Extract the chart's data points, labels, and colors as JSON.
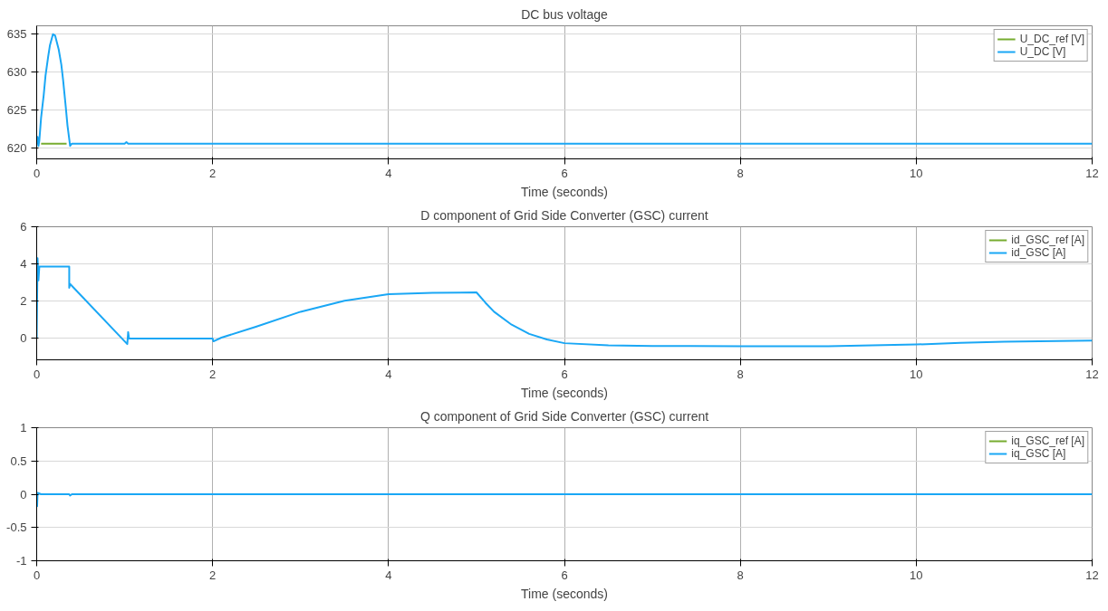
{
  "chart_data": [
    {
      "type": "line",
      "title": "DC bus voltage",
      "xlabel": "Time (seconds)",
      "xlim": [
        0,
        12
      ],
      "xticks": [
        0,
        2,
        4,
        6,
        8,
        10,
        12
      ],
      "ylim": [
        618.6,
        636.1
      ],
      "yticks": [
        620,
        625,
        630,
        635
      ],
      "grid": true,
      "legend": "top right",
      "series": [
        {
          "name": "U_DC_ref [V]",
          "color": "#77ac30",
          "x": [
            0.05,
            0.34
          ],
          "values": [
            620.6,
            620.6
          ]
        },
        {
          "name": "U_DC [V]",
          "color": "#1aa7f5",
          "x": [
            0,
            0.01,
            0.02,
            0.03,
            0.05,
            0.08,
            0.1,
            0.13,
            0.15,
            0.185,
            0.21,
            0.25,
            0.28,
            0.3,
            0.33,
            0.35,
            0.38,
            0.4,
            1.0,
            1.02,
            1.04,
            12
          ],
          "values": [
            620.5,
            621.5,
            620.3,
            621,
            624,
            627,
            629.5,
            632,
            633.5,
            635,
            634.8,
            633,
            631,
            629,
            625.5,
            623,
            620.3,
            620.6,
            620.6,
            620.8,
            620.6,
            620.6
          ]
        }
      ]
    },
    {
      "type": "line",
      "title": "D component of Grid Side Converter (GSC) current",
      "xlabel": "Time (seconds)",
      "xlim": [
        0,
        12
      ],
      "xticks": [
        0,
        2,
        4,
        6,
        8,
        10,
        12
      ],
      "ylim": [
        -1.2,
        6
      ],
      "yticks": [
        0,
        2,
        4,
        6
      ],
      "grid": true,
      "legend": "top right",
      "series": [
        {
          "name": "id_GSC_ref [A]",
          "color": "#77ac30"
        },
        {
          "name": "id_GSC [A]",
          "color": "#1aa7f5",
          "x": [
            0,
            0.01,
            0.02,
            0.03,
            0.37,
            0.37,
            0.38,
            1.03,
            1.04,
            1.05,
            2.0,
            2.01,
            2.1,
            2.5,
            3.0,
            3.5,
            4.0,
            4.5,
            5.0,
            5.1,
            5.2,
            5.4,
            5.6,
            5.8,
            6.0,
            6.5,
            7.0,
            8.0,
            9.0,
            9.5,
            10.0,
            10.5,
            11.0,
            12.0
          ],
          "values": [
            0,
            4.3,
            3.1,
            3.85,
            3.85,
            2.7,
            2.9,
            -0.35,
            0.3,
            -0.05,
            -0.05,
            -0.2,
            0.0,
            0.6,
            1.4,
            2.0,
            2.35,
            2.42,
            2.45,
            1.9,
            1.4,
            0.7,
            0.2,
            -0.1,
            -0.3,
            -0.42,
            -0.45,
            -0.46,
            -0.47,
            -0.42,
            -0.37,
            -0.28,
            -0.22,
            -0.16
          ]
        }
      ]
    },
    {
      "type": "line",
      "title": "Q component of Grid Side Converter (GSC) current",
      "xlabel": "Time (seconds)",
      "xlim": [
        0,
        12
      ],
      "xticks": [
        0,
        2,
        4,
        6,
        8,
        10,
        12
      ],
      "ylim": [
        -1,
        1
      ],
      "yticks": [
        -1,
        -0.5,
        0,
        0.5,
        1
      ],
      "grid": true,
      "legend": "top right",
      "series": [
        {
          "name": "iq_GSC_ref [A]",
          "color": "#77ac30"
        },
        {
          "name": "iq_GSC [A]",
          "color": "#1aa7f5",
          "x": [
            0,
            0.005,
            0.01,
            0.05,
            0.37,
            0.38,
            0.4,
            12
          ],
          "values": [
            0,
            -0.18,
            0.02,
            0,
            0,
            -0.02,
            0,
            0
          ]
        }
      ]
    }
  ]
}
